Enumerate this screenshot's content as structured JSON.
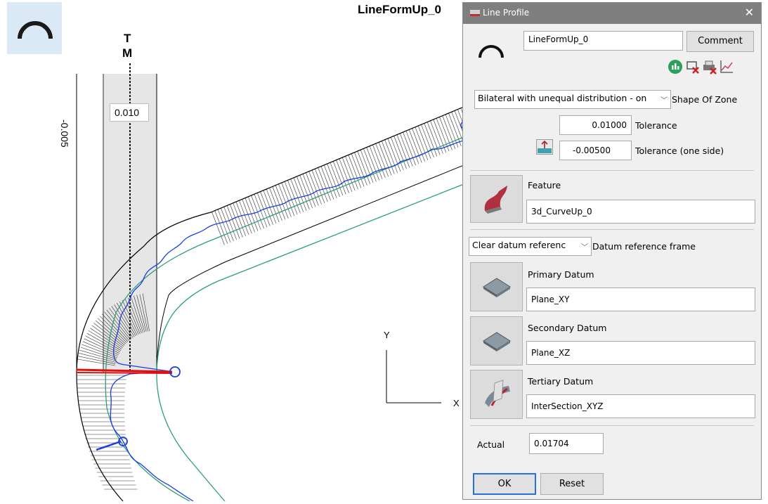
{
  "canvas": {
    "title": "LineFormUp_0",
    "tm_label_t": "T",
    "tm_label_m": "M",
    "dim_vertical": "-0.005",
    "dim_box": "0.010",
    "axis_y": "Y",
    "axis_x": "X"
  },
  "dialog": {
    "title": "Line Profile",
    "name_value": "LineFormUp_0",
    "comment_label": "Comment",
    "shape_zone_value": "Bilateral with unequal distribution - on",
    "shape_zone_label": "Shape Of Zone",
    "tolerance_value": "0.01000",
    "tolerance_label": "Tolerance",
    "tolerance_one_side_value": "-0.00500",
    "tolerance_one_side_label": "Tolerance (one side)",
    "feature_label": "Feature",
    "feature_value": "3d_CurveUp_0",
    "datum_frame_value": "Clear datum referenc",
    "datum_frame_label": "Datum reference frame",
    "primary_label": "Primary Datum",
    "primary_value": "Plane_XY",
    "secondary_label": "Secondary Datum",
    "secondary_value": "Plane_XZ",
    "tertiary_label": "Tertiary Datum",
    "tertiary_value": "InterSection_XYZ",
    "actual_label": "Actual",
    "actual_value": "0.01704",
    "ok_label": "OK",
    "reset_label": "Reset"
  },
  "colors": {
    "tolerance_band": "#000000",
    "measured_curve": "#1a3ce0",
    "nominal_curve": "#2e9e78",
    "max_deviation": "#e01010",
    "zone_fill": "#e6e6e6"
  },
  "icons": [
    "arc-profile-icon",
    "analysis-icon",
    "delete-report-icon",
    "print-report-icon",
    "graph-icon",
    "tolerance-side-icon",
    "feature-icon",
    "plane-icon",
    "intersection-icon",
    "close-icon",
    "window-icon"
  ]
}
